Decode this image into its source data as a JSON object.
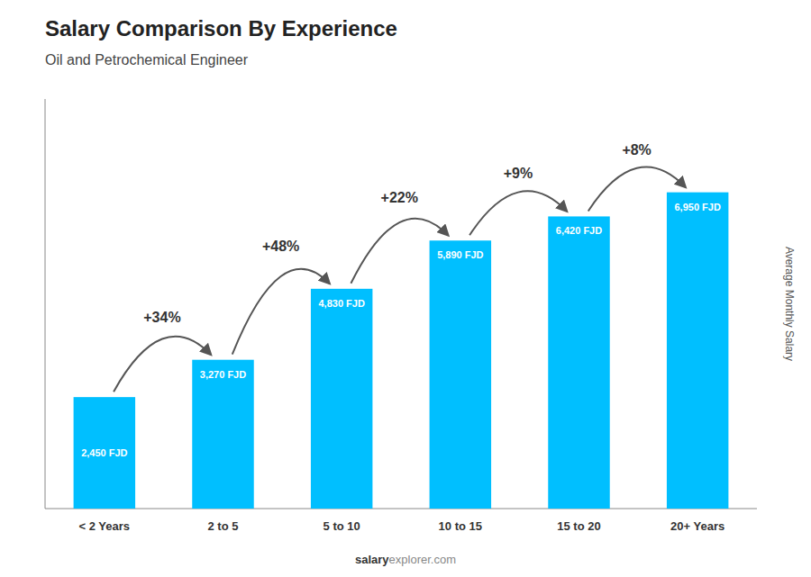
{
  "chart_data": {
    "type": "bar",
    "title": "Salary Comparison By Experience",
    "subtitle": "Oil and Petrochemical Engineer",
    "ylabel": "Average Monthly Salary",
    "categories": [
      "< 2 Years",
      "2 to 5",
      "5 to 10",
      "10 to 15",
      "15 to 20",
      "20+ Years"
    ],
    "values": [
      2450,
      3270,
      4830,
      5890,
      6420,
      6950
    ],
    "value_labels": [
      "2,450 FJD",
      "3,270 FJD",
      "4,830 FJD",
      "5,890 FJD",
      "6,420 FJD",
      "6,950 FJD"
    ],
    "annotations": [
      "+34%",
      "+48%",
      "+22%",
      "+9%",
      "+8%"
    ],
    "footer_bold": "salary",
    "footer_rest": "explorer.com",
    "color": "#00BFFF",
    "ylim": [
      0,
      9000
    ],
    "yticks": [],
    "tick_labels": "x",
    "data_labels": true,
    "grid": false
  }
}
